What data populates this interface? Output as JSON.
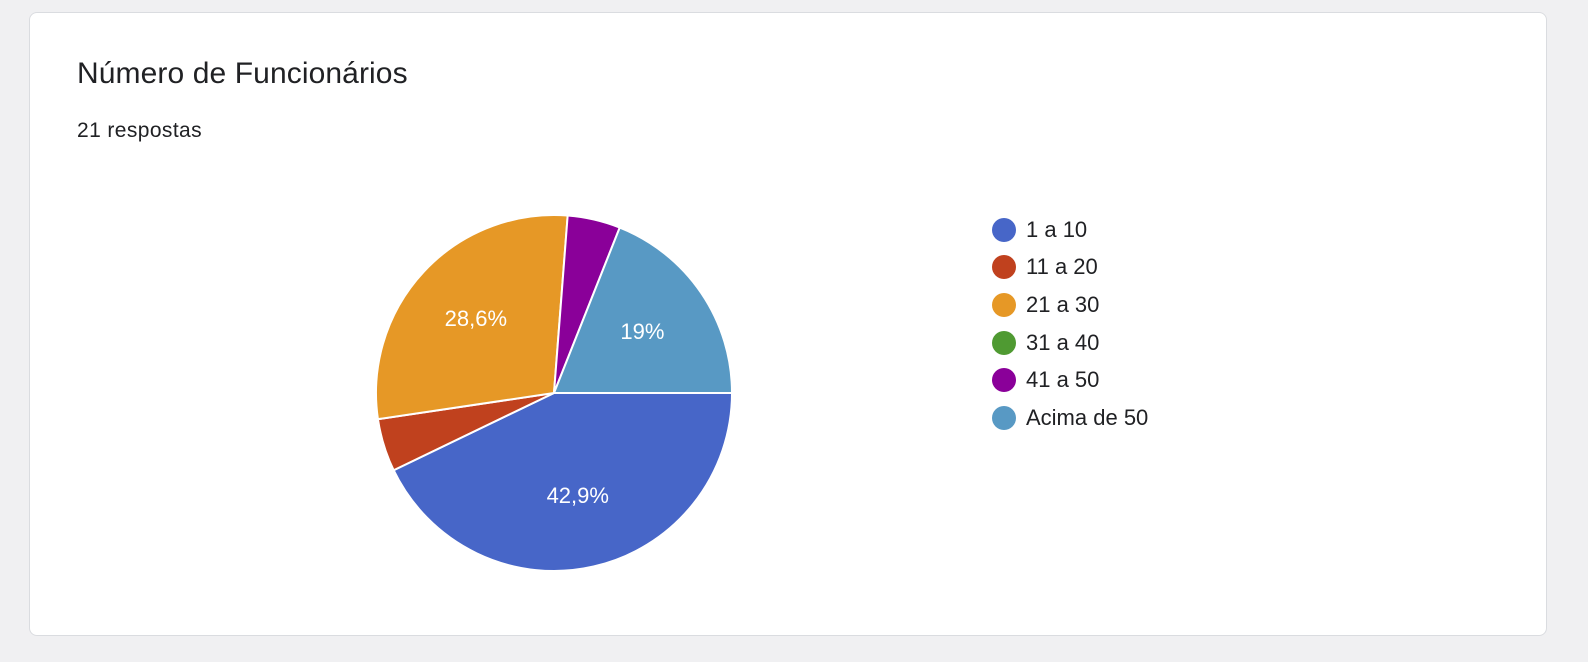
{
  "card": {
    "title": "Número de Funcionários",
    "subtitle": "21 respostas"
  },
  "chart_data": {
    "type": "pie",
    "title": "Número de Funcionários",
    "subtitle": "21 respostas",
    "legend_position": "right",
    "slices": [
      {
        "label": "1 a 10",
        "percent": 42.9,
        "count": 9,
        "color": "#4766c8",
        "data_label": "42,9%"
      },
      {
        "label": "11 a 20",
        "percent": 4.8,
        "count": 1,
        "color": "#c0411e",
        "data_label": ""
      },
      {
        "label": "21 a 30",
        "percent": 28.6,
        "count": 6,
        "color": "#e69826",
        "data_label": "28,6%"
      },
      {
        "label": "31 a 40",
        "percent": 0,
        "count": 0,
        "color": "#4f9a32",
        "data_label": ""
      },
      {
        "label": "41 a 50",
        "percent": 4.8,
        "count": 1,
        "color": "#8a0099",
        "data_label": ""
      },
      {
        "label": "Acima de 50",
        "percent": 19.0,
        "count": 4,
        "color": "#5899c4",
        "data_label": "19%"
      }
    ]
  }
}
